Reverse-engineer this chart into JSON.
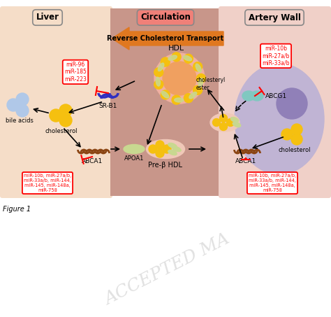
{
  "bg_color": "#ffffff",
  "liver_bg": "#f5ddc8",
  "circulation_bg": "#c8968a",
  "artery_bg": "#f0d0c8",
  "liver_label": "Liver",
  "circulation_label": "Circulation",
  "circulation_label_bg": "#f08078",
  "artery_label": "Artery Wall",
  "rct_label": "Reverse Cholesterol Transport",
  "rct_color": "#e07820",
  "hdl_label": "HDL",
  "pre_hdl_label": "Pre-β HDL",
  "cholesteryl_label": "cholesteryl\nester",
  "apoa1_label": "APOA1",
  "abca1_label": "ABCA1",
  "abcg1_label": "ABCG1",
  "srb1_label": "SR-B1",
  "bile_acids_label": "bile acids",
  "cholesterol_label": "cholesterol",
  "mir_srb1": "miR-96\nmiR-185\nmiR-223",
  "mir_abca1_liver": "miR-10b, miR-27a/b,\nmiR-33a/b, miR-144,\nmiR-145, miR-148a,\nmiR-758",
  "mir_abcg1": "miR-10b\nmiR-27a/b\nmiR-33a/b",
  "mir_abca1_artery": "miR-10b, miR-27a/b,\nmiR-33a/b, miR-144,\nmiR-145, miR-148a,\nmiR-758",
  "yellow": "#f5c010",
  "hdl_outer_color": "#f0b0a0",
  "hdl_inner_color": "#f0a060",
  "pre_hdl_color": "#f0c8b8",
  "ellipse_color": "#c8d890",
  "abca1_color": "#8b4513",
  "cell_color": "#c0b4d4",
  "nucleus_color": "#9080b8",
  "abcg1_color": "#80c8c0",
  "srb1_color": "#3030c0",
  "bile_color": "#b0c8e8",
  "figure_label": "igure 1",
  "watermark": "ACCEPTED MA",
  "watermark_color": "#c8c8c8",
  "panel_border": "#888888"
}
